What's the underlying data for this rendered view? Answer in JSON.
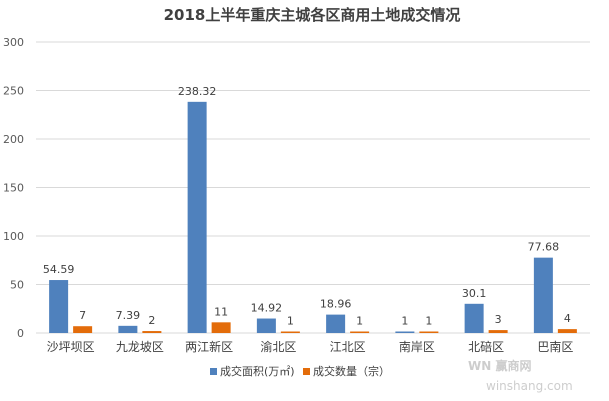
{
  "chart_data": {
    "type": "bar",
    "title": "2018上半年重庆主城各区商用土地成交情况",
    "categories": [
      "沙坪坝区",
      "九龙坡区",
      "两江新区",
      "渝北区",
      "江北区",
      "南岸区",
      "北碚区",
      "巴南区"
    ],
    "series": [
      {
        "name": "成交面积(万㎡)",
        "values": [
          54.59,
          7.39,
          238.32,
          14.92,
          18.96,
          1,
          30.1,
          77.68
        ],
        "labels": [
          "54.59",
          "7.39",
          "238.32",
          "14.92",
          "18.96",
          "1",
          "30.1",
          "77.68"
        ],
        "color": "#4f81bd"
      },
      {
        "name": "成交数量（宗）",
        "values": [
          7,
          2,
          11,
          1,
          1,
          1,
          3,
          4
        ],
        "labels": [
          "7",
          "2",
          "11",
          "1",
          "1",
          "1",
          "3",
          "4"
        ],
        "color": "#e36c0a"
      }
    ],
    "yticks": [
      "0",
      "50",
      "100",
      "150",
      "200",
      "250",
      "300"
    ],
    "ylim": [
      0,
      300
    ],
    "grid": true,
    "legend": "bottom",
    "watermark": {
      "text_large": "WN 赢商网",
      "text_small": "winshang.com"
    }
  }
}
